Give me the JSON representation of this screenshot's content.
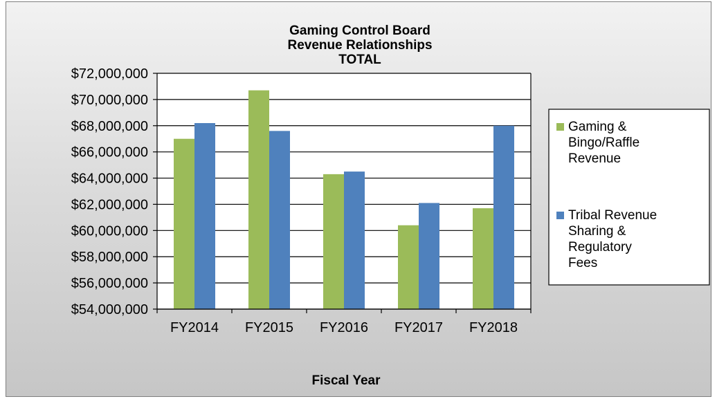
{
  "chart_data": {
    "type": "bar",
    "title_lines": [
      "Gaming Control Board",
      "Revenue Relationships",
      "TOTAL"
    ],
    "xlabel": "Fiscal Year",
    "ylabel": "",
    "categories": [
      "FY2014",
      "FY2015",
      "FY2016",
      "FY2017",
      "FY2018"
    ],
    "ylim": [
      54000000,
      72000000
    ],
    "yticks": [
      54000000,
      56000000,
      58000000,
      60000000,
      62000000,
      64000000,
      66000000,
      68000000,
      70000000,
      72000000
    ],
    "ytick_labels": [
      "$54,000,000",
      "$56,000,000",
      "$58,000,000",
      "$60,000,000",
      "$62,000,000",
      "$64,000,000",
      "$66,000,000",
      "$68,000,000",
      "$70,000,000",
      "$72,000,000"
    ],
    "grid": "horizontal",
    "legend_position": "right",
    "series": [
      {
        "name_lines": [
          "Gaming &",
          "Bingo/Raffle",
          "Revenue"
        ],
        "color": "#9bbb59",
        "values": [
          67000000,
          70700000,
          64300000,
          60400000,
          61700000
        ]
      },
      {
        "name_lines": [
          "Tribal Revenue",
          "Sharing &",
          "Regulatory",
          "Fees"
        ],
        "color": "#4f81bd",
        "values": [
          68200000,
          67600000,
          64500000,
          62100000,
          68000000
        ]
      }
    ]
  }
}
